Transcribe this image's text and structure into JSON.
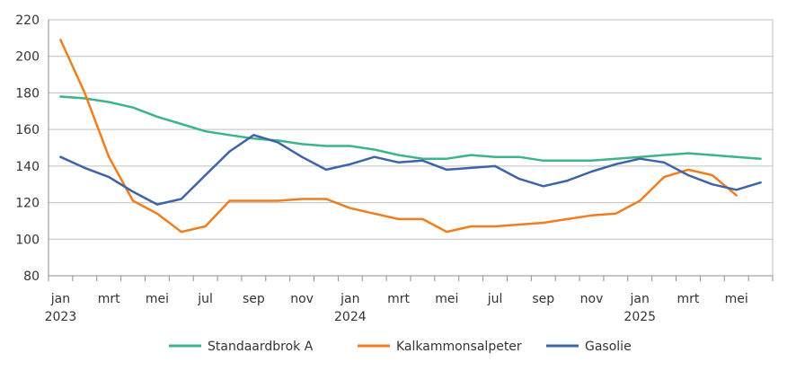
{
  "chart_data": {
    "type": "line",
    "title": "",
    "xlabel": "",
    "ylabel": "",
    "ylim": [
      80,
      220
    ],
    "yticks": [
      80,
      100,
      120,
      140,
      160,
      180,
      200,
      220
    ],
    "grid": "horizontal",
    "legend_position": "bottom",
    "x": [
      "2023-01",
      "2023-02",
      "2023-03",
      "2023-04",
      "2023-05",
      "2023-06",
      "2023-07",
      "2023-08",
      "2023-09",
      "2023-10",
      "2023-11",
      "2023-12",
      "2024-01",
      "2024-02",
      "2024-03",
      "2024-04",
      "2024-05",
      "2024-06",
      "2024-07",
      "2024-08",
      "2024-09",
      "2024-10",
      "2024-11",
      "2024-12",
      "2025-01",
      "2025-02",
      "2025-03",
      "2025-04",
      "2025-05",
      "2025-06"
    ],
    "xtick_labels": [
      {
        "index": 0,
        "label": "jan",
        "year": "2023"
      },
      {
        "index": 2,
        "label": "mrt",
        "year": ""
      },
      {
        "index": 4,
        "label": "mei",
        "year": ""
      },
      {
        "index": 6,
        "label": "jul",
        "year": ""
      },
      {
        "index": 8,
        "label": "sep",
        "year": ""
      },
      {
        "index": 10,
        "label": "nov",
        "year": ""
      },
      {
        "index": 12,
        "label": "jan",
        "year": "2024"
      },
      {
        "index": 14,
        "label": "mrt",
        "year": ""
      },
      {
        "index": 16,
        "label": "mei",
        "year": ""
      },
      {
        "index": 18,
        "label": "jul",
        "year": ""
      },
      {
        "index": 20,
        "label": "sep",
        "year": ""
      },
      {
        "index": 22,
        "label": "nov",
        "year": ""
      },
      {
        "index": 24,
        "label": "jan",
        "year": "2025"
      },
      {
        "index": 26,
        "label": "mrt",
        "year": ""
      },
      {
        "index": 28,
        "label": "mei",
        "year": ""
      }
    ],
    "series": [
      {
        "name": "Standaardbrok A",
        "color": "#3cb48c",
        "values": [
          178,
          177,
          175,
          172,
          167,
          163,
          159,
          157,
          155,
          154,
          152,
          151,
          151,
          149,
          146,
          144,
          144,
          146,
          145,
          145,
          143,
          143,
          143,
          144,
          145,
          146,
          147,
          146,
          145,
          144
        ]
      },
      {
        "name": "Kalkammonsalpeter",
        "color": "#f07d1e",
        "values": [
          209,
          180,
          145,
          121,
          114,
          104,
          107,
          121,
          121,
          121,
          122,
          122,
          117,
          114,
          111,
          111,
          104,
          107,
          107,
          108,
          109,
          111,
          113,
          114,
          121,
          134,
          138,
          135,
          124,
          null
        ]
      },
      {
        "name": "Gasolie",
        "color": "#3f63aa",
        "values": [
          145,
          139,
          134,
          126,
          119,
          122,
          135,
          148,
          157,
          153,
          145,
          138,
          141,
          145,
          142,
          143,
          138,
          139,
          140,
          133,
          129,
          132,
          137,
          141,
          144,
          142,
          135,
          130,
          127,
          131
        ]
      }
    ]
  }
}
